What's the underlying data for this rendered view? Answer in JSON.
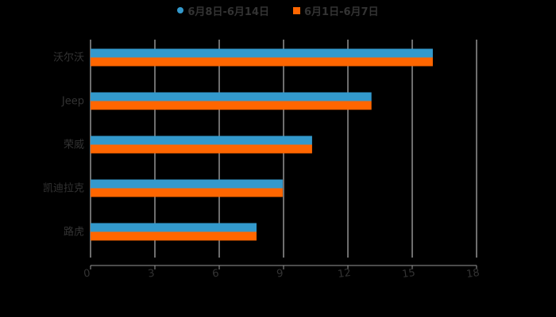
{
  "legend": [
    {
      "label": "6月8日-6月14日",
      "color": "#3399CC",
      "marker": "circle"
    },
    {
      "label": "6月1日-6月7日",
      "color": "#FF6600",
      "marker": "square"
    }
  ],
  "chart_data": {
    "type": "bar",
    "orientation": "horizontal",
    "title": "",
    "xlabel": "",
    "ylabel": "",
    "categories": [
      "沃尔沃",
      "Jeep",
      "荣威",
      "凯迪拉克",
      "路虎"
    ],
    "series": [
      {
        "name": "6月8日-6月14日",
        "color": "#3399CC",
        "values": [
          15.96,
          13.1,
          10.33,
          8.96,
          7.74
        ]
      },
      {
        "name": "6月1日-6月7日",
        "color": "#FF6600",
        "values": [
          15.96,
          13.1,
          10.33,
          8.96,
          7.74
        ]
      }
    ],
    "xlim": [
      0,
      18
    ],
    "xticks": [
      "0",
      "3",
      "6",
      "9",
      "12",
      "15",
      "18"
    ],
    "grid": true,
    "legend_position": "top"
  }
}
